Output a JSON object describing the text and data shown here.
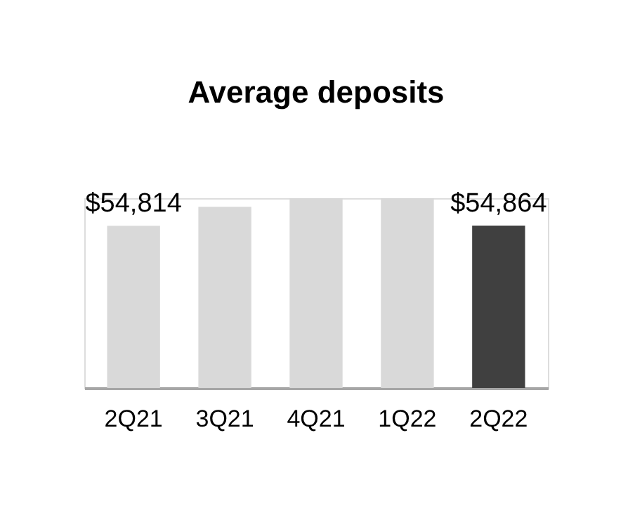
{
  "chart_data": {
    "type": "bar",
    "title": "Average deposits",
    "categories": [
      "2Q21",
      "3Q21",
      "4Q21",
      "1Q22",
      "2Q22"
    ],
    "values": [
      54814,
      61180,
      64110,
      64110,
      54864
    ],
    "colors": [
      "#d9d9d9",
      "#d9d9d9",
      "#d9d9d9",
      "#d9d9d9",
      "#404040"
    ],
    "value_labels": [
      "$54,814",
      null,
      null,
      null,
      "$54,864"
    ]
  }
}
